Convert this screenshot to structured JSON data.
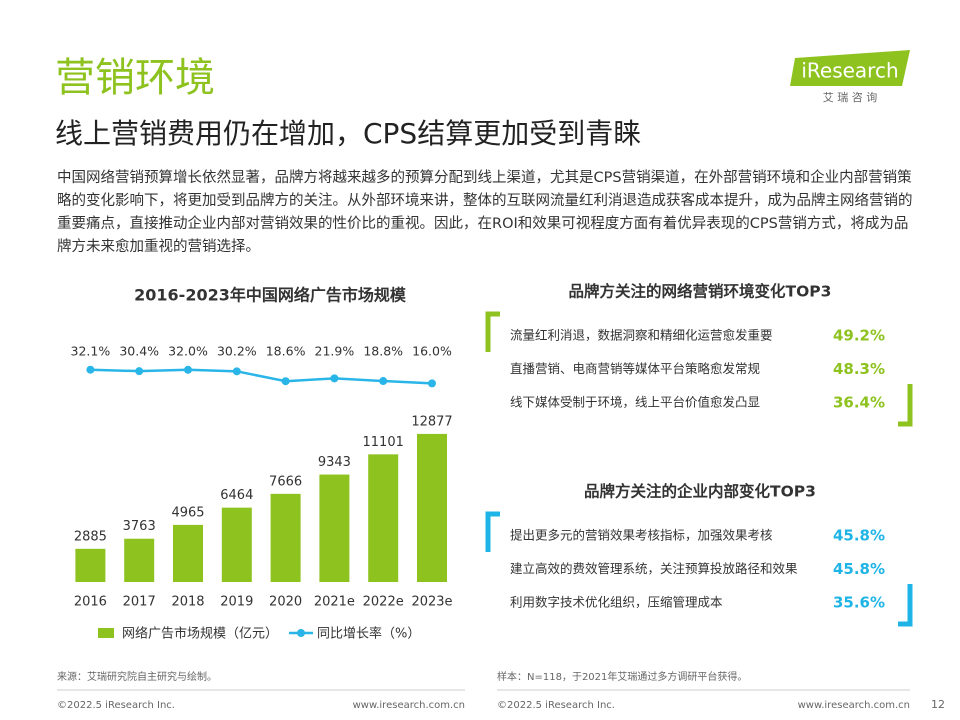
{
  "header": {
    "title": "营销环境",
    "subtitle": "线上营销费用仍在增加，CPS结算更加受到青睐",
    "logo": "iResearch",
    "logo_sub": "艾 瑞 咨 询"
  },
  "body": "中国网络营销预算增长依然显著，品牌方将越来越多的预算分配到线上渠道，尤其是CPS营销渠道，在外部营销环境和企业内部营销策略的变化影响下，将更加受到品牌方的关注。从外部环境来讲，整体的互联网流量红利消退造成获客成本提升，成为品牌主网络营销的重要痛点，直接推动企业内部对营销效果的性价比的重视。因此，在ROI和效果可视程度方面有着优异表现的CPS营销方式，将成为品牌方未来愈加重视的营销选择。",
  "chart_data": {
    "type": "bar",
    "title": "2016-2023年中国网络广告市场规模",
    "categories": [
      "2016",
      "2017",
      "2018",
      "2019",
      "2020",
      "2021e",
      "2022e",
      "2023e"
    ],
    "series": [
      {
        "name": "网络广告市场规模（亿元）",
        "type": "bar",
        "color": "#8dc21f",
        "values": [
          2885,
          3763,
          4965,
          6464,
          7666,
          9343,
          11101,
          12877
        ]
      },
      {
        "name": "同比增长率（%）",
        "type": "line",
        "color": "#29b5e8",
        "values": [
          32.1,
          30.4,
          32.0,
          30.2,
          18.6,
          21.9,
          18.8,
          16.0
        ],
        "value_labels": [
          "32.1%",
          "30.4%",
          "32.0%",
          "30.2%",
          "18.6%",
          "21.9%",
          "18.8%",
          "16.0%"
        ]
      }
    ],
    "legend": "bottom"
  },
  "panels": [
    {
      "title": "品牌方关注的网络营销环境变化TOP3",
      "color": "#8dc21f",
      "items": [
        {
          "text": "流量红利消退，数据洞察和精细化运营愈发重要",
          "value": "49.2%"
        },
        {
          "text": "直播营销、电商营销等媒体平台策略愈发常规",
          "value": "48.3%"
        },
        {
          "text": "线下媒体受制于环境，线上平台价值愈发凸显",
          "value": "36.4%"
        }
      ]
    },
    {
      "title": "品牌方关注的企业内部变化TOP3",
      "color": "#1fb4e6",
      "items": [
        {
          "text": "提出更多元的营销效果考核指标，加强效果考核",
          "value": "45.8%"
        },
        {
          "text": "建立高效的费效管理系统，关注预算投放路径和效果",
          "value": "45.8%"
        },
        {
          "text": "利用数字技术优化组织，压缩管理成本",
          "value": "35.6%"
        }
      ]
    }
  ],
  "footer": {
    "source_left": "来源：艾瑞研究院自主研究与绘制。",
    "source_right": "样本：N=118，于2021年艾瑞通过多方调研平台获得。",
    "copyright_left": "©2022.5 iResearch Inc.",
    "url_left": "www.iresearch.com.cn",
    "copyright_right": "©2022.5 iResearch Inc.",
    "url_right": "www.iresearch.com.cn",
    "page": "12"
  }
}
